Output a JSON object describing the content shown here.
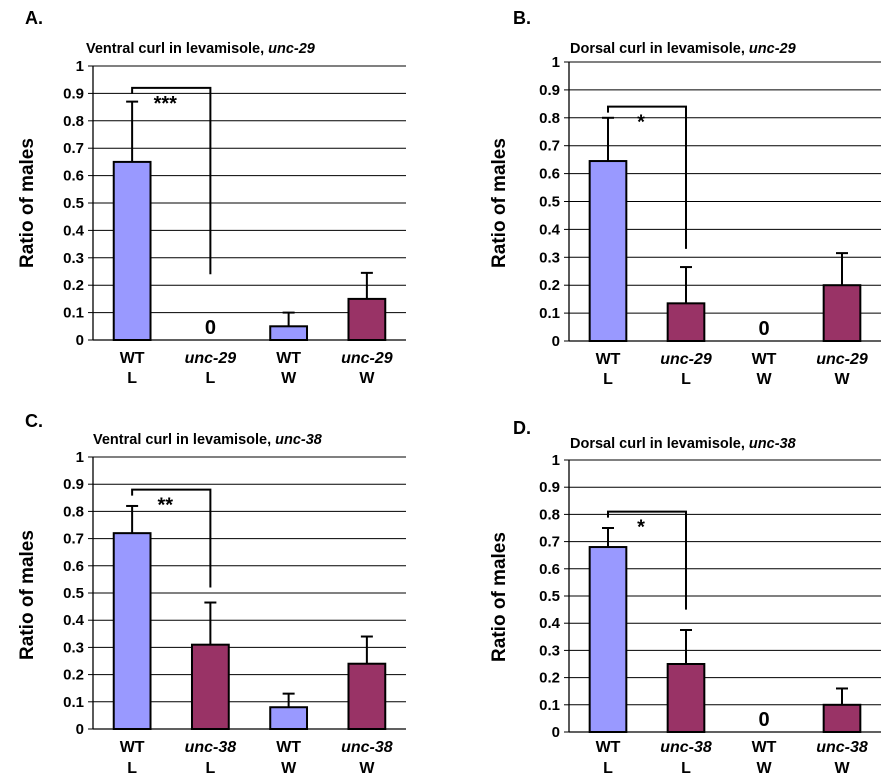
{
  "colors": {
    "wt_bar": "#9999ff",
    "mutant_bar": "#993366",
    "axis": "#000000"
  },
  "chart_data": [
    {
      "type": "bar",
      "panel_label": "A.",
      "title": "Ventral curl in levamisole, ",
      "title_gene": "unc-29",
      "ylabel": "Ratio of males",
      "ylim": [
        0,
        1
      ],
      "yticks": [
        "0",
        "0.1",
        "0.2",
        "0.3",
        "0.4",
        "0.5",
        "0.6",
        "0.7",
        "0.8",
        "0.9",
        "1"
      ],
      "categories": [
        {
          "line1": "WT",
          "line2": "L",
          "italic": false
        },
        {
          "line1": "unc-29",
          "line2": "L",
          "italic": true
        },
        {
          "line1": "WT",
          "line2": "W",
          "italic": false
        },
        {
          "line1": "unc-29",
          "line2": "W",
          "italic": true
        }
      ],
      "values": [
        0.65,
        0,
        0.05,
        0.15
      ],
      "errors": [
        0.22,
        0,
        0.05,
        0.095
      ],
      "bar_colors": [
        "#9999ff",
        "#993366",
        "#9999ff",
        "#993366"
      ],
      "value_labels": [
        null,
        "0",
        null,
        null
      ],
      "significance": {
        "from": 0,
        "to": 1,
        "label": "***",
        "y_top": 0.92,
        "y_end": 0.24
      }
    },
    {
      "type": "bar",
      "panel_label": "B.",
      "title": "Dorsal curl in levamisole, ",
      "title_gene": "unc-29",
      "ylabel": "Ratio of males",
      "ylim": [
        0,
        1
      ],
      "yticks": [
        "0",
        "0.1",
        "0.2",
        "0.3",
        "0.4",
        "0.5",
        "0.6",
        "0.7",
        "0.8",
        "0.9",
        "1"
      ],
      "categories": [
        {
          "line1": "WT",
          "line2": "L",
          "italic": false
        },
        {
          "line1": "unc-29",
          "line2": "L",
          "italic": true
        },
        {
          "line1": "WT",
          "line2": "W",
          "italic": false
        },
        {
          "line1": "unc-29",
          "line2": "W",
          "italic": true
        }
      ],
      "values": [
        0.645,
        0.135,
        0,
        0.2
      ],
      "errors": [
        0.155,
        0.13,
        0,
        0.115
      ],
      "bar_colors": [
        "#9999ff",
        "#993366",
        "#9999ff",
        "#993366"
      ],
      "value_labels": [
        null,
        null,
        "0",
        null
      ],
      "significance": {
        "from": 0,
        "to": 1,
        "label": "*",
        "y_top": 0.84,
        "y_end": 0.33
      }
    },
    {
      "type": "bar",
      "panel_label": "C.",
      "title": "Ventral curl in levamisole, ",
      "title_gene": "unc-38",
      "ylabel": "Ratio of males",
      "ylim": [
        0,
        1
      ],
      "yticks": [
        "0",
        "0.1",
        "0.2",
        "0.3",
        "0.4",
        "0.5",
        "0.6",
        "0.7",
        "0.8",
        "0.9",
        "1"
      ],
      "categories": [
        {
          "line1": "WT",
          "line2": "L",
          "italic": false
        },
        {
          "line1": "unc-38",
          "line2": "L",
          "italic": true
        },
        {
          "line1": "WT",
          "line2": "W",
          "italic": false
        },
        {
          "line1": "unc-38",
          "line2": "W",
          "italic": true
        }
      ],
      "values": [
        0.72,
        0.31,
        0.08,
        0.24
      ],
      "errors": [
        0.1,
        0.155,
        0.05,
        0.1
      ],
      "bar_colors": [
        "#9999ff",
        "#993366",
        "#9999ff",
        "#993366"
      ],
      "value_labels": [
        null,
        null,
        null,
        null
      ],
      "significance": {
        "from": 0,
        "to": 1,
        "label": "**",
        "y_top": 0.88,
        "y_end": 0.52
      }
    },
    {
      "type": "bar",
      "panel_label": "D.",
      "title": "Dorsal curl in levamisole, ",
      "title_gene": "unc-38",
      "ylabel": "Ratio of males",
      "ylim": [
        0,
        1
      ],
      "yticks": [
        "0",
        "0.1",
        "0.2",
        "0.3",
        "0.4",
        "0.5",
        "0.6",
        "0.7",
        "0.8",
        "0.9",
        "1"
      ],
      "categories": [
        {
          "line1": "WT",
          "line2": "L",
          "italic": false
        },
        {
          "line1": "unc-38",
          "line2": "L",
          "italic": true
        },
        {
          "line1": "WT",
          "line2": "W",
          "italic": false
        },
        {
          "line1": "unc-38",
          "line2": "W",
          "italic": true
        }
      ],
      "values": [
        0.68,
        0.25,
        0,
        0.1
      ],
      "errors": [
        0.07,
        0.125,
        0,
        0.06
      ],
      "bar_colors": [
        "#9999ff",
        "#993366",
        "#9999ff",
        "#993366"
      ],
      "value_labels": [
        null,
        null,
        "0",
        null
      ],
      "significance": {
        "from": 0,
        "to": 1,
        "label": "*",
        "y_top": 0.81,
        "y_end": 0.45
      }
    }
  ]
}
